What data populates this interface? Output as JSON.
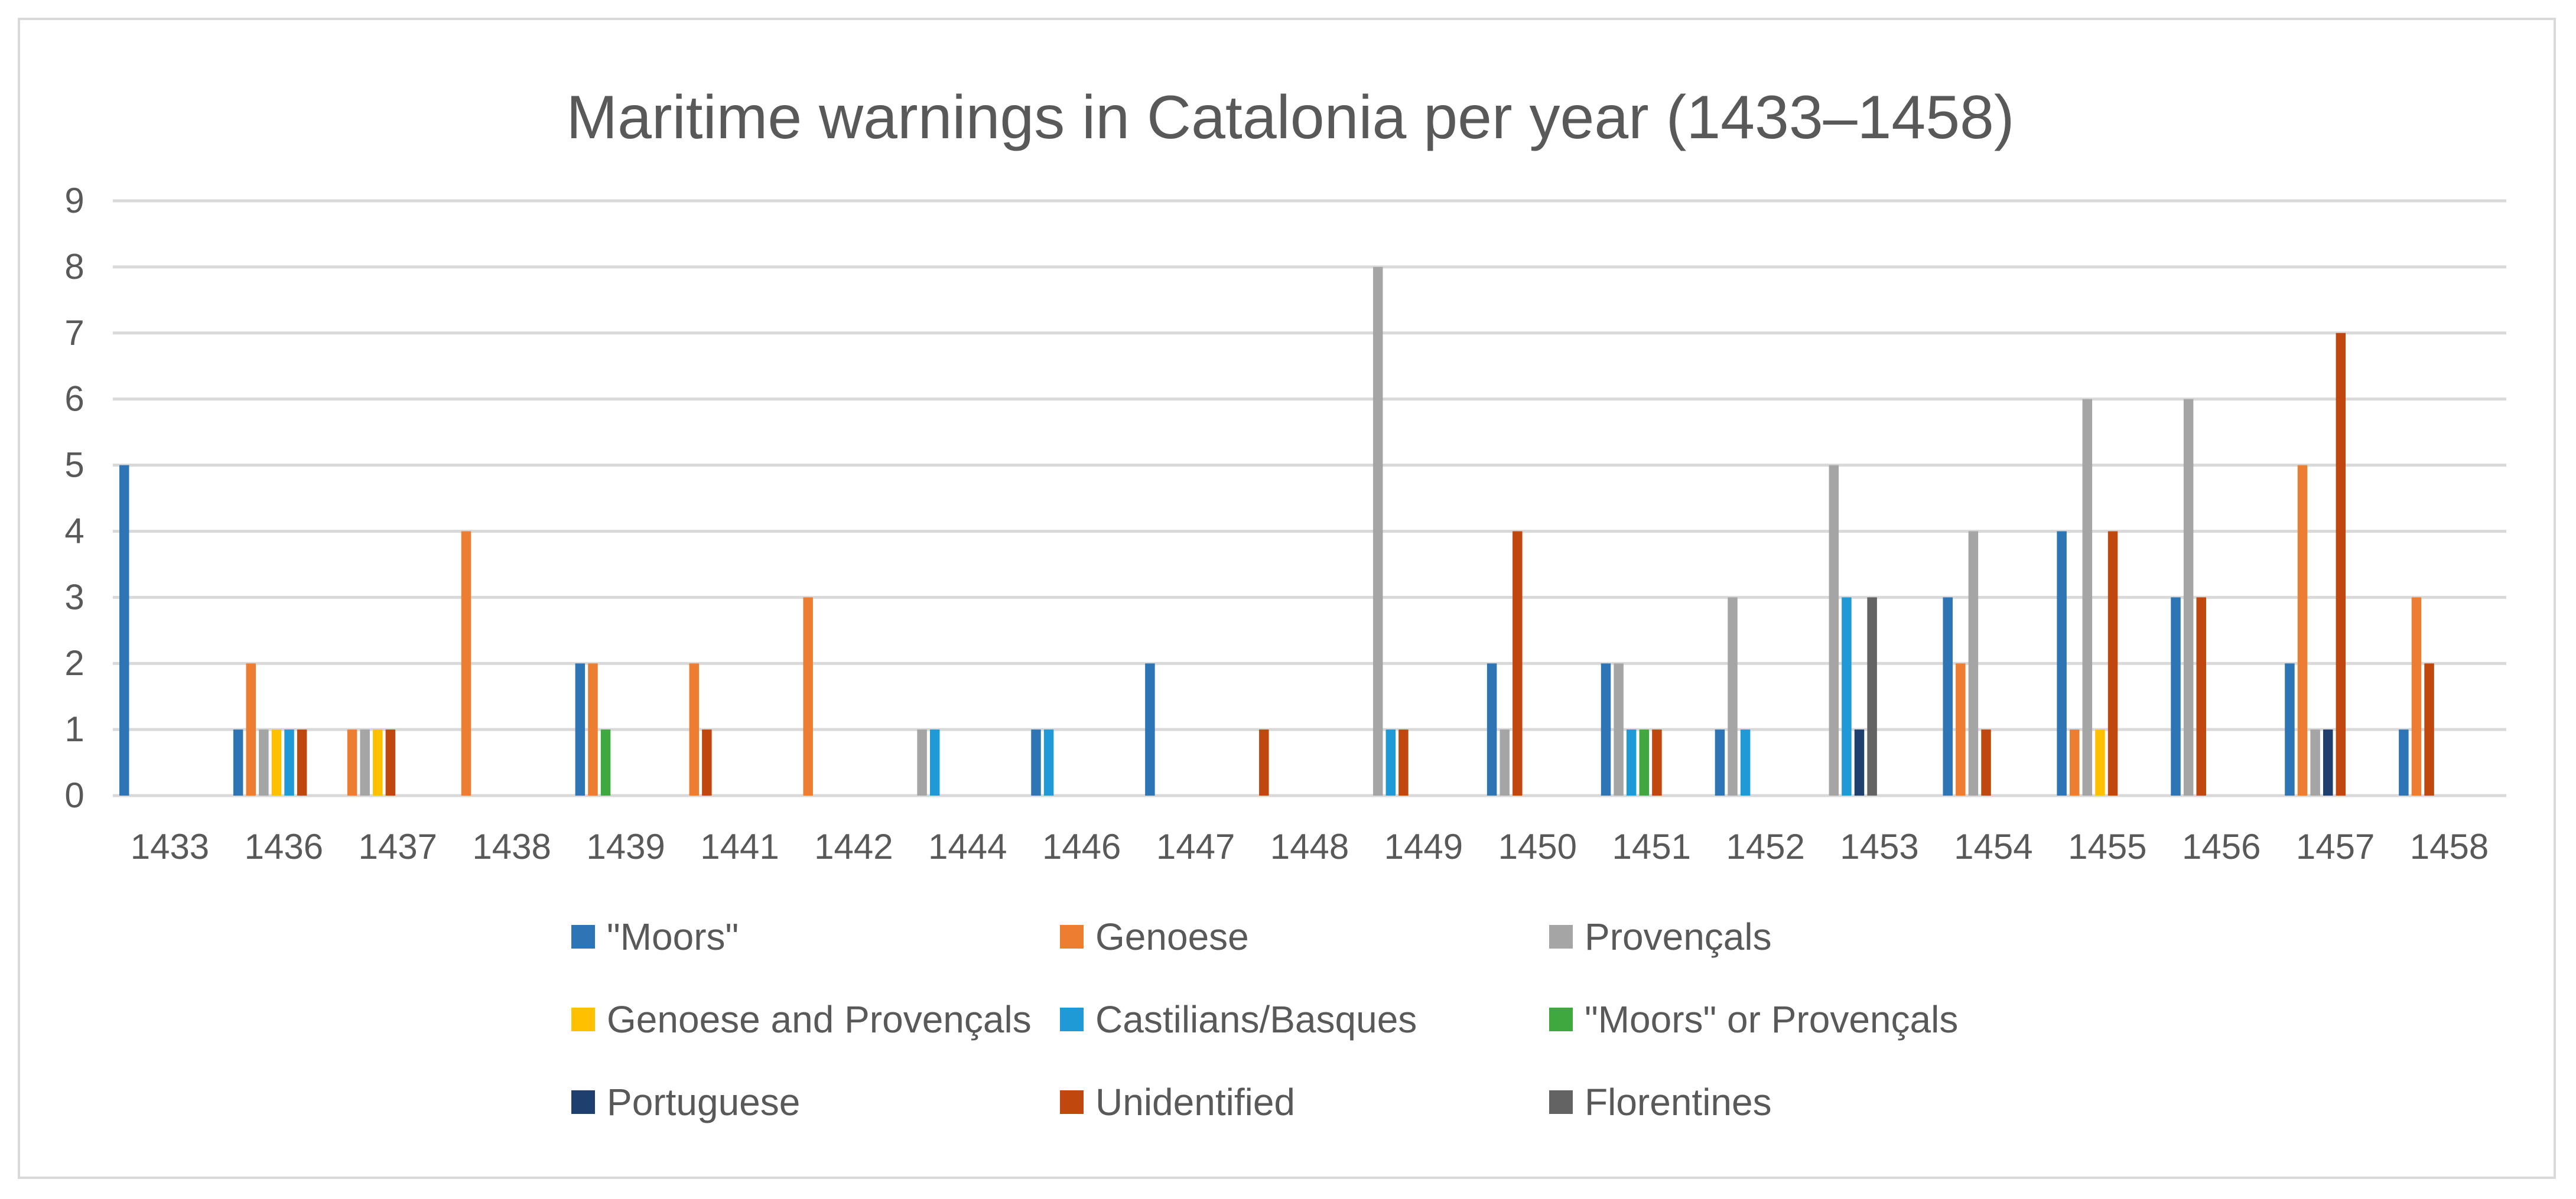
{
  "chart_data": {
    "type": "bar",
    "title": "Maritime warnings in Catalonia per year (1433–1458)",
    "xlabel": "",
    "ylabel": "",
    "ylim": [
      0,
      9
    ],
    "yticks": [
      0,
      1,
      2,
      3,
      4,
      5,
      6,
      7,
      8,
      9
    ],
    "grid": true,
    "legend_position": "bottom",
    "categories": [
      "1433",
      "1436",
      "1437",
      "1438",
      "1439",
      "1441",
      "1442",
      "1444",
      "1446",
      "1447",
      "1448",
      "1449",
      "1450",
      "1451",
      "1452",
      "1453",
      "1454",
      "1455",
      "1456",
      "1457",
      "1458"
    ],
    "series": [
      {
        "name": "\"Moors\"",
        "color": "#2e75b6",
        "values": [
          5,
          1,
          0,
          0,
          2,
          0,
          0,
          0,
          1,
          2,
          0,
          0,
          2,
          2,
          1,
          0,
          3,
          4,
          3,
          2,
          1
        ]
      },
      {
        "name": "Genoese",
        "color": "#ed7d31",
        "values": [
          0,
          2,
          1,
          4,
          2,
          2,
          3,
          0,
          0,
          0,
          0,
          0,
          0,
          0,
          0,
          0,
          2,
          1,
          0,
          5,
          3
        ]
      },
      {
        "name": "Provençals",
        "color": "#a5a5a5",
        "values": [
          0,
          1,
          1,
          0,
          0,
          0,
          0,
          1,
          0,
          0,
          0,
          8,
          1,
          2,
          3,
          5,
          4,
          6,
          6,
          1,
          0
        ]
      },
      {
        "name": "Genoese and Provençals",
        "color": "#ffc000",
        "values": [
          0,
          1,
          1,
          0,
          0,
          0,
          0,
          0,
          0,
          0,
          0,
          0,
          0,
          0,
          0,
          0,
          0,
          1,
          0,
          0,
          0
        ]
      },
      {
        "name": "Castilians/Basques",
        "color": "#1f9ad6",
        "values": [
          0,
          1,
          0,
          0,
          0,
          0,
          0,
          1,
          1,
          0,
          0,
          1,
          0,
          1,
          1,
          3,
          0,
          0,
          0,
          0,
          0
        ]
      },
      {
        "name": "\"Moors\" or Provençals",
        "color": "#3fa83f",
        "values": [
          0,
          0,
          0,
          0,
          1,
          0,
          0,
          0,
          0,
          0,
          0,
          0,
          0,
          1,
          0,
          0,
          0,
          0,
          0,
          0,
          0
        ]
      },
      {
        "name": "Portuguese",
        "color": "#1f3f6e",
        "values": [
          0,
          0,
          0,
          0,
          0,
          0,
          0,
          0,
          0,
          0,
          0,
          0,
          0,
          0,
          0,
          1,
          0,
          0,
          0,
          1,
          0
        ]
      },
      {
        "name": "Unidentified",
        "color": "#c0480e",
        "values": [
          0,
          1,
          1,
          0,
          0,
          1,
          0,
          0,
          0,
          0,
          1,
          1,
          4,
          1,
          0,
          0,
          1,
          4,
          3,
          7,
          2
        ]
      },
      {
        "name": "Florentines",
        "color": "#636363",
        "values": [
          0,
          0,
          0,
          0,
          0,
          0,
          0,
          0,
          0,
          0,
          0,
          0,
          0,
          0,
          0,
          3,
          0,
          0,
          0,
          0,
          0
        ]
      }
    ]
  }
}
